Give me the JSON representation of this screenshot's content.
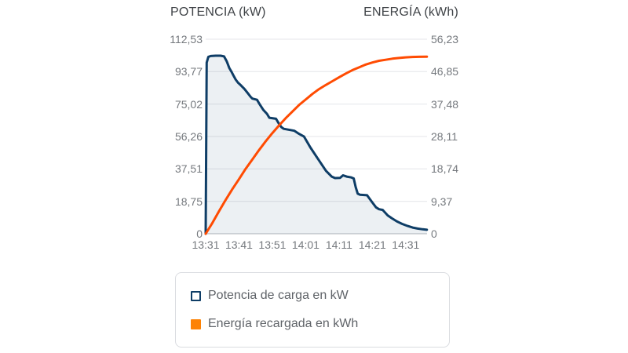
{
  "chart_data": {
    "type": "line",
    "title": "",
    "x_unit": "time of day (minutes after 13:31)",
    "x_tick_labels": [
      "13:31",
      "13:41",
      "13:51",
      "14:01",
      "14:11",
      "14:21",
      "14:31"
    ],
    "x_tick_minutes": [
      0,
      10,
      20,
      30,
      40,
      50,
      60
    ],
    "xlim_minutes": [
      0,
      66.4
    ],
    "grid": true,
    "legend_position": "bottom",
    "left_axis": {
      "title": "POTENCIA (kW)",
      "min": 0,
      "max": 112.53,
      "ticks": [
        {
          "label": "112,53",
          "value": 112.53
        },
        {
          "label": "93,77",
          "value": 93.77
        },
        {
          "label": "75,02",
          "value": 75.02
        },
        {
          "label": "56,26",
          "value": 56.26
        },
        {
          "label": "37,51",
          "value": 37.51
        },
        {
          "label": "18,75",
          "value": 18.75
        },
        {
          "label": "0",
          "value": 0
        }
      ]
    },
    "right_axis": {
      "title": "ENERGÍA (kWh)",
      "min": 0,
      "max": 56.23,
      "ticks": [
        {
          "label": "56,23",
          "value": 56.23
        },
        {
          "label": "46,85",
          "value": 46.85
        },
        {
          "label": "37,48",
          "value": 37.48
        },
        {
          "label": "28,11",
          "value": 28.11
        },
        {
          "label": "18,74",
          "value": 18.74
        },
        {
          "label": "9,37",
          "value": 9.37
        },
        {
          "label": "0",
          "value": 0
        }
      ]
    },
    "series": [
      {
        "name": "Potencia de carga en kW",
        "axis": "left",
        "color": "#0e3d66",
        "fill": "rgba(14,61,102,0.08)",
        "points": [
          [
            0,
            0
          ],
          [
            0.3,
            99
          ],
          [
            0.8,
            102.3
          ],
          [
            1.5,
            102.8
          ],
          [
            3,
            103
          ],
          [
            4.5,
            103
          ],
          [
            5.5,
            102.6
          ],
          [
            6.3,
            99.8
          ],
          [
            7.1,
            95.8
          ],
          [
            7.7,
            93.9
          ],
          [
            8.3,
            91.6
          ],
          [
            9,
            89.2
          ],
          [
            9.7,
            87.4
          ],
          [
            10.6,
            85.8
          ],
          [
            11.6,
            83.8
          ],
          [
            12.6,
            81.4
          ],
          [
            13.5,
            79.2
          ],
          [
            14,
            78.2
          ],
          [
            15.4,
            77.5
          ],
          [
            16.3,
            74.6
          ],
          [
            17.3,
            71.6
          ],
          [
            18.4,
            69.4
          ],
          [
            19.1,
            67.1
          ],
          [
            21.1,
            66.5
          ],
          [
            22,
            63.6
          ],
          [
            22.7,
            61.7
          ],
          [
            23.4,
            60.7
          ],
          [
            26.6,
            59.6
          ],
          [
            28,
            57.8
          ],
          [
            29.5,
            56.2
          ],
          [
            31.4,
            49.9
          ],
          [
            33.8,
            43
          ],
          [
            36.1,
            36.4
          ],
          [
            37.8,
            33.1
          ],
          [
            38.8,
            32.2
          ],
          [
            40.3,
            32.3
          ],
          [
            41.2,
            33.8
          ],
          [
            42.3,
            33.1
          ],
          [
            43.7,
            32.6
          ],
          [
            44.4,
            32
          ],
          [
            45,
            27
          ],
          [
            45.6,
            23.2
          ],
          [
            46.3,
            22.6
          ],
          [
            48.4,
            22.3
          ],
          [
            49.8,
            18.6
          ],
          [
            51.1,
            15.3
          ],
          [
            52,
            14.2
          ],
          [
            53.1,
            13.8
          ],
          [
            54.6,
            10.6
          ],
          [
            55.9,
            8.9
          ],
          [
            57.3,
            7.2
          ],
          [
            58.9,
            5.7
          ],
          [
            60.6,
            4.5
          ],
          [
            62.1,
            3.6
          ],
          [
            63.6,
            3.0
          ],
          [
            65.1,
            2.6
          ],
          [
            66.35,
            2.3
          ]
        ]
      },
      {
        "name": "Energía recargada en kWh",
        "axis": "right",
        "color": "#ff4b02",
        "points": [
          [
            0,
            0
          ],
          [
            2,
            3.1
          ],
          [
            4,
            6.5
          ],
          [
            6,
            9.8
          ],
          [
            8,
            12.9
          ],
          [
            10,
            15.8
          ],
          [
            12,
            18.8
          ],
          [
            14,
            21.5
          ],
          [
            16,
            24.2
          ],
          [
            18,
            26.7
          ],
          [
            20,
            29.1
          ],
          [
            22,
            31.3
          ],
          [
            24,
            33.4
          ],
          [
            26,
            35.3
          ],
          [
            28,
            37.2
          ],
          [
            30,
            38.8
          ],
          [
            32,
            40.4
          ],
          [
            34,
            41.8
          ],
          [
            36,
            43.0
          ],
          [
            38,
            44.1
          ],
          [
            40,
            45.2
          ],
          [
            42,
            46.3
          ],
          [
            44,
            47.3
          ],
          [
            46,
            48.1
          ],
          [
            48,
            48.9
          ],
          [
            50,
            49.5
          ],
          [
            52,
            50.0
          ],
          [
            54,
            50.3
          ],
          [
            56,
            50.6
          ],
          [
            58,
            50.8
          ],
          [
            60,
            51.0
          ],
          [
            62,
            51.1
          ],
          [
            64,
            51.15
          ],
          [
            66.35,
            51.2
          ]
        ]
      }
    ]
  },
  "legend": {
    "items": [
      {
        "label": "Potencia de carga en kW",
        "marker": "square-outline",
        "color": "#0e3d66"
      },
      {
        "label": "Energía recargada en kWh",
        "marker": "square-filled",
        "color": "#fd8204"
      }
    ]
  }
}
